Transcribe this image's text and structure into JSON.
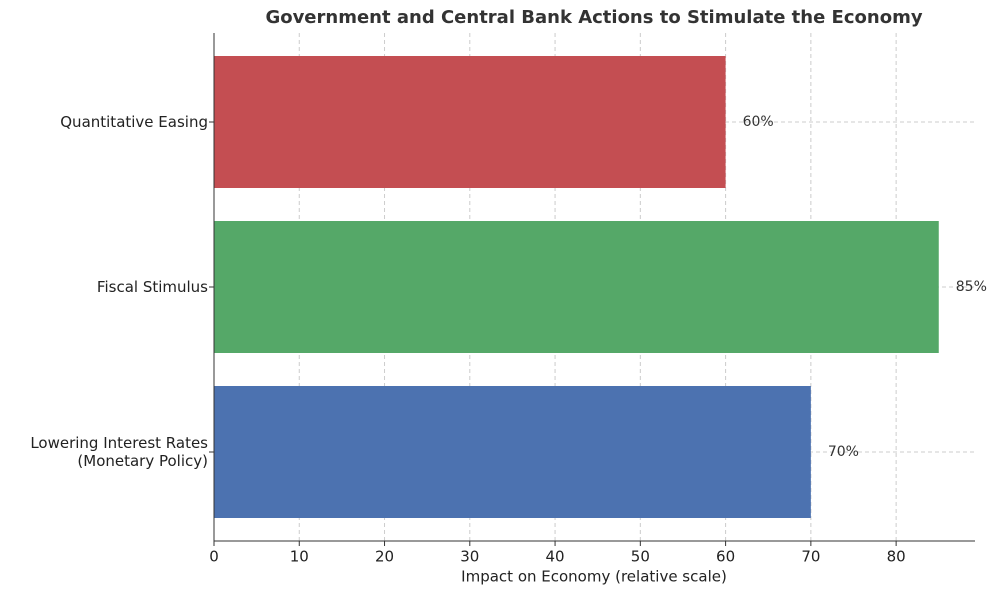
{
  "chart_data": {
    "type": "barh",
    "title": "Government and Central Bank Actions to Stimulate the Economy",
    "categories": [
      "Lowering Interest Rates\n(Monetary Policy)",
      "Fiscal Stimulus",
      "Quantitative Easing"
    ],
    "values": [
      70,
      85,
      60
    ],
    "value_labels": [
      "70%",
      "85%",
      "60%"
    ],
    "colors": [
      "#4c72b0",
      "#55a868",
      "#c44e52"
    ],
    "xlabel": "Impact on Economy (relative scale)",
    "xlim": [
      0,
      89.25
    ],
    "xticks": [
      0,
      10,
      20,
      30,
      40,
      50,
      60,
      70,
      80
    ],
    "grid": true
  }
}
